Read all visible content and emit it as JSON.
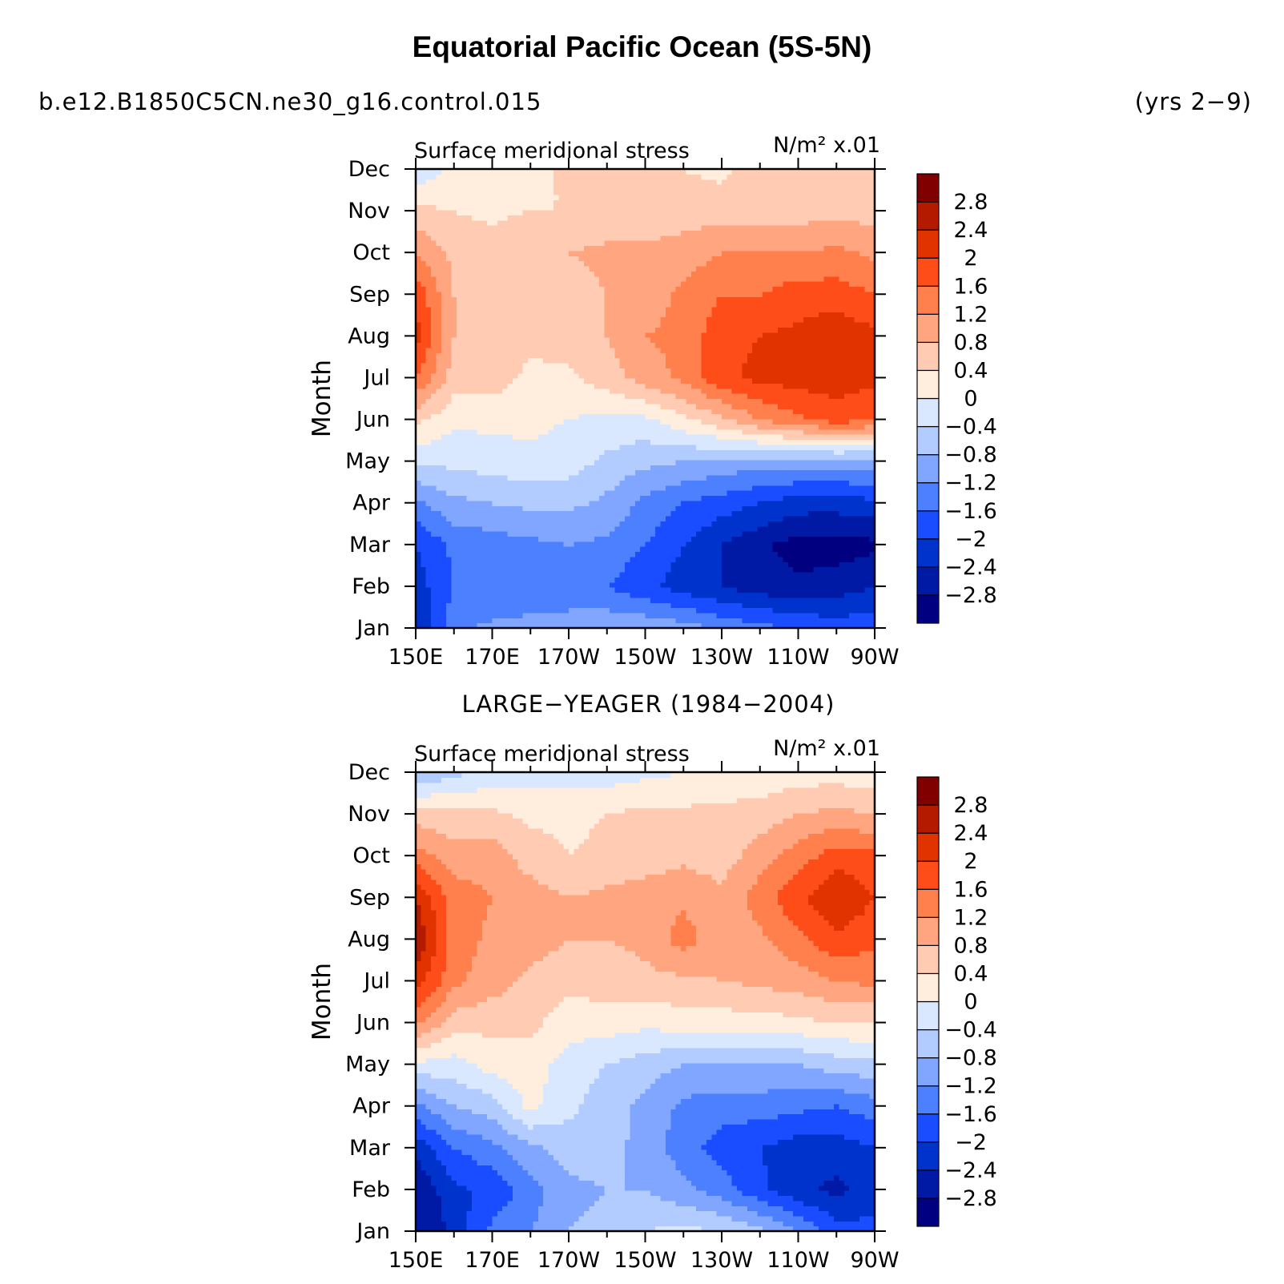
{
  "title": "Equatorial Pacific Ocean (5S-5N)",
  "case_name": "b.e12.B1850C5CN.ne30_g16.control.015",
  "years": "(yrs 2−9)",
  "colors": {
    "levels": [
      "#000080",
      "#001aa6",
      "#0033cc",
      "#1a4dff",
      "#4d80ff",
      "#80a6ff",
      "#b3ccff",
      "#d9e8ff",
      "#ffeedd",
      "#ffccb3",
      "#ffa680",
      "#ff804d",
      "#ff4d1a",
      "#e03300",
      "#b31a00",
      "#800000"
    ]
  },
  "chart_data": [
    {
      "type": "heatmap",
      "panel_title": "",
      "left_label": "Surface meridional stress",
      "right_label": "N/m² x.01",
      "ylabel": "Month",
      "xlabel": "",
      "x_ticks": [
        "150E",
        "170E",
        "170W",
        "150W",
        "130W",
        "110W",
        "90W"
      ],
      "y_ticks": [
        "Jan",
        "Feb",
        "Mar",
        "Apr",
        "May",
        "Jun",
        "Jul",
        "Aug",
        "Sep",
        "Oct",
        "Nov",
        "Dec"
      ],
      "x_degrees_east": [
        150,
        160,
        170,
        180,
        190,
        200,
        210,
        220,
        230,
        240,
        250,
        260,
        270
      ],
      "levels": [
        "2.8",
        "2.4",
        "2",
        "1.6",
        "1.2",
        "0.8",
        "0.4",
        "0",
        "−0.4",
        "−0.8",
        "−1.2",
        "−1.6",
        "−2",
        "−2.4",
        "−2.8"
      ],
      "level_values": [
        -2.8,
        -2.4,
        -2,
        -1.6,
        -1.2,
        -0.8,
        -0.4,
        0,
        0.4,
        0.8,
        1.2,
        1.6,
        2,
        2.4,
        2.8
      ],
      "z": [
        [
          -2.4,
          -1.3,
          -1.1,
          -1.0,
          -0.9,
          -0.9,
          -0.9,
          -1.0,
          -1.3,
          -1.5,
          -1.6,
          -1.8,
          -1.7
        ],
        [
          -2.2,
          -1.6,
          -1.6,
          -1.6,
          -1.6,
          -1.6,
          -1.9,
          -2.2,
          -2.4,
          -2.6,
          -2.7,
          -2.6,
          -2.4
        ],
        [
          -2.0,
          -1.5,
          -1.4,
          -1.3,
          -1.2,
          -1.3,
          -1.6,
          -2.0,
          -2.4,
          -2.7,
          -3.0,
          -3.0,
          -2.9
        ],
        [
          -1.3,
          -0.9,
          -0.8,
          -0.7,
          -0.7,
          -0.9,
          -1.3,
          -1.6,
          -1.8,
          -2.0,
          -2.2,
          -2.2,
          -2.1
        ],
        [
          -0.3,
          -0.3,
          -0.2,
          -0.1,
          -0.2,
          -0.5,
          -0.7,
          -0.8,
          -0.9,
          -1.0,
          -1.0,
          -1.0,
          -1.0
        ],
        [
          0.5,
          0.1,
          0.1,
          0.1,
          0.0,
          -0.1,
          -0.1,
          0.3,
          0.7,
          1.2,
          1.5,
          1.8,
          1.6
        ],
        [
          1.6,
          0.6,
          0.6,
          0.3,
          0.3,
          0.6,
          1.0,
          1.3,
          1.9,
          2.1,
          2.2,
          2.2,
          2.1
        ],
        [
          2.2,
          0.8,
          0.6,
          0.5,
          0.6,
          0.8,
          1.2,
          1.3,
          1.9,
          2.0,
          2.1,
          2.3,
          2.1
        ],
        [
          1.9,
          0.8,
          0.6,
          0.6,
          0.6,
          0.8,
          1.0,
          1.3,
          1.6,
          1.6,
          1.8,
          1.8,
          1.6
        ],
        [
          1.2,
          0.7,
          0.6,
          0.8,
          0.8,
          0.9,
          0.9,
          1.0,
          1.2,
          1.2,
          1.2,
          1.3,
          1.1
        ],
        [
          0.5,
          0.4,
          0.3,
          0.4,
          0.4,
          0.5,
          0.5,
          0.6,
          0.6,
          0.6,
          0.6,
          0.7,
          0.6
        ],
        [
          -0.3,
          0.1,
          0.1,
          0.2,
          0.5,
          0.5,
          0.4,
          0.4,
          0.3,
          0.6,
          0.6,
          0.6,
          0.5
        ]
      ]
    },
    {
      "type": "heatmap",
      "panel_title": "LARGE−YEAGER (1984−2004)",
      "left_label": "Surface meridional stress",
      "right_label": "N/m² x.01",
      "ylabel": "Month",
      "xlabel": "",
      "x_ticks": [
        "150E",
        "170E",
        "170W",
        "150W",
        "130W",
        "110W",
        "90W"
      ],
      "y_ticks": [
        "Jan",
        "Feb",
        "Mar",
        "Apr",
        "May",
        "Jun",
        "Jul",
        "Aug",
        "Sep",
        "Oct",
        "Nov",
        "Dec"
      ],
      "x_degrees_east": [
        150,
        160,
        170,
        180,
        190,
        200,
        210,
        220,
        230,
        240,
        250,
        260,
        270
      ],
      "levels": [
        "2.8",
        "2.4",
        "2",
        "1.6",
        "1.2",
        "0.8",
        "0.4",
        "0",
        "−0.4",
        "−0.8",
        "−1.2",
        "−1.6",
        "−2",
        "−2.4",
        "−2.8"
      ],
      "level_values": [
        -2.8,
        -2.4,
        -2,
        -1.6,
        -1.2,
        -0.8,
        -0.4,
        0,
        0.4,
        0.8,
        1.2,
        1.6,
        2,
        2.4,
        2.8
      ],
      "z": [
        [
          -2.8,
          -2.3,
          -1.5,
          -1.2,
          -0.8,
          -0.7,
          -0.4,
          -0.3,
          -0.4,
          -0.7,
          -1.2,
          -1.8,
          -1.9
        ],
        [
          -2.8,
          -2.1,
          -1.9,
          -1.4,
          -0.9,
          -0.8,
          -0.8,
          -1.1,
          -1.4,
          -1.9,
          -2.3,
          -2.5,
          -2.2
        ],
        [
          -2.3,
          -1.6,
          -1.3,
          -0.9,
          -0.6,
          -0.6,
          -1.0,
          -1.4,
          -1.8,
          -2.0,
          -2.2,
          -2.2,
          -2.0
        ],
        [
          -1.3,
          -0.8,
          -0.6,
          0.1,
          -0.3,
          -0.6,
          -0.9,
          -1.3,
          -1.4,
          -1.4,
          -1.5,
          -1.6,
          -1.4
        ],
        [
          -0.1,
          -0.2,
          0.2,
          0.2,
          -0.2,
          -0.4,
          -0.6,
          -0.8,
          -0.8,
          -0.8,
          -0.8,
          -0.6,
          -0.5
        ],
        [
          1.3,
          0.6,
          0.5,
          0.5,
          0.2,
          0.2,
          0.1,
          0.2,
          0.2,
          0.2,
          0.3,
          0.4,
          0.4
        ],
        [
          2.2,
          1.3,
          1.0,
          0.7,
          0.5,
          0.6,
          0.7,
          0.7,
          0.8,
          0.9,
          1.0,
          1.2,
          1.3
        ],
        [
          2.8,
          1.4,
          1.1,
          1.0,
          0.8,
          0.8,
          0.9,
          1.4,
          0.9,
          1.1,
          1.5,
          1.9,
          1.7
        ],
        [
          2.4,
          1.4,
          1.2,
          1.0,
          0.8,
          0.9,
          1.0,
          1.1,
          0.9,
          1.4,
          1.9,
          2.4,
          2.0
        ],
        [
          1.4,
          1.0,
          1.0,
          0.6,
          0.4,
          0.5,
          0.6,
          0.7,
          0.6,
          1.0,
          1.4,
          1.8,
          1.7
        ],
        [
          0.6,
          0.5,
          0.5,
          0.3,
          0.3,
          0.4,
          0.5,
          0.5,
          0.5,
          0.6,
          0.8,
          0.9,
          0.8
        ],
        [
          -0.8,
          -0.5,
          -0.3,
          -0.2,
          -0.2,
          -0.2,
          -0.1,
          0.0,
          0.1,
          0.1,
          0.2,
          0.2,
          0.1
        ]
      ]
    }
  ]
}
